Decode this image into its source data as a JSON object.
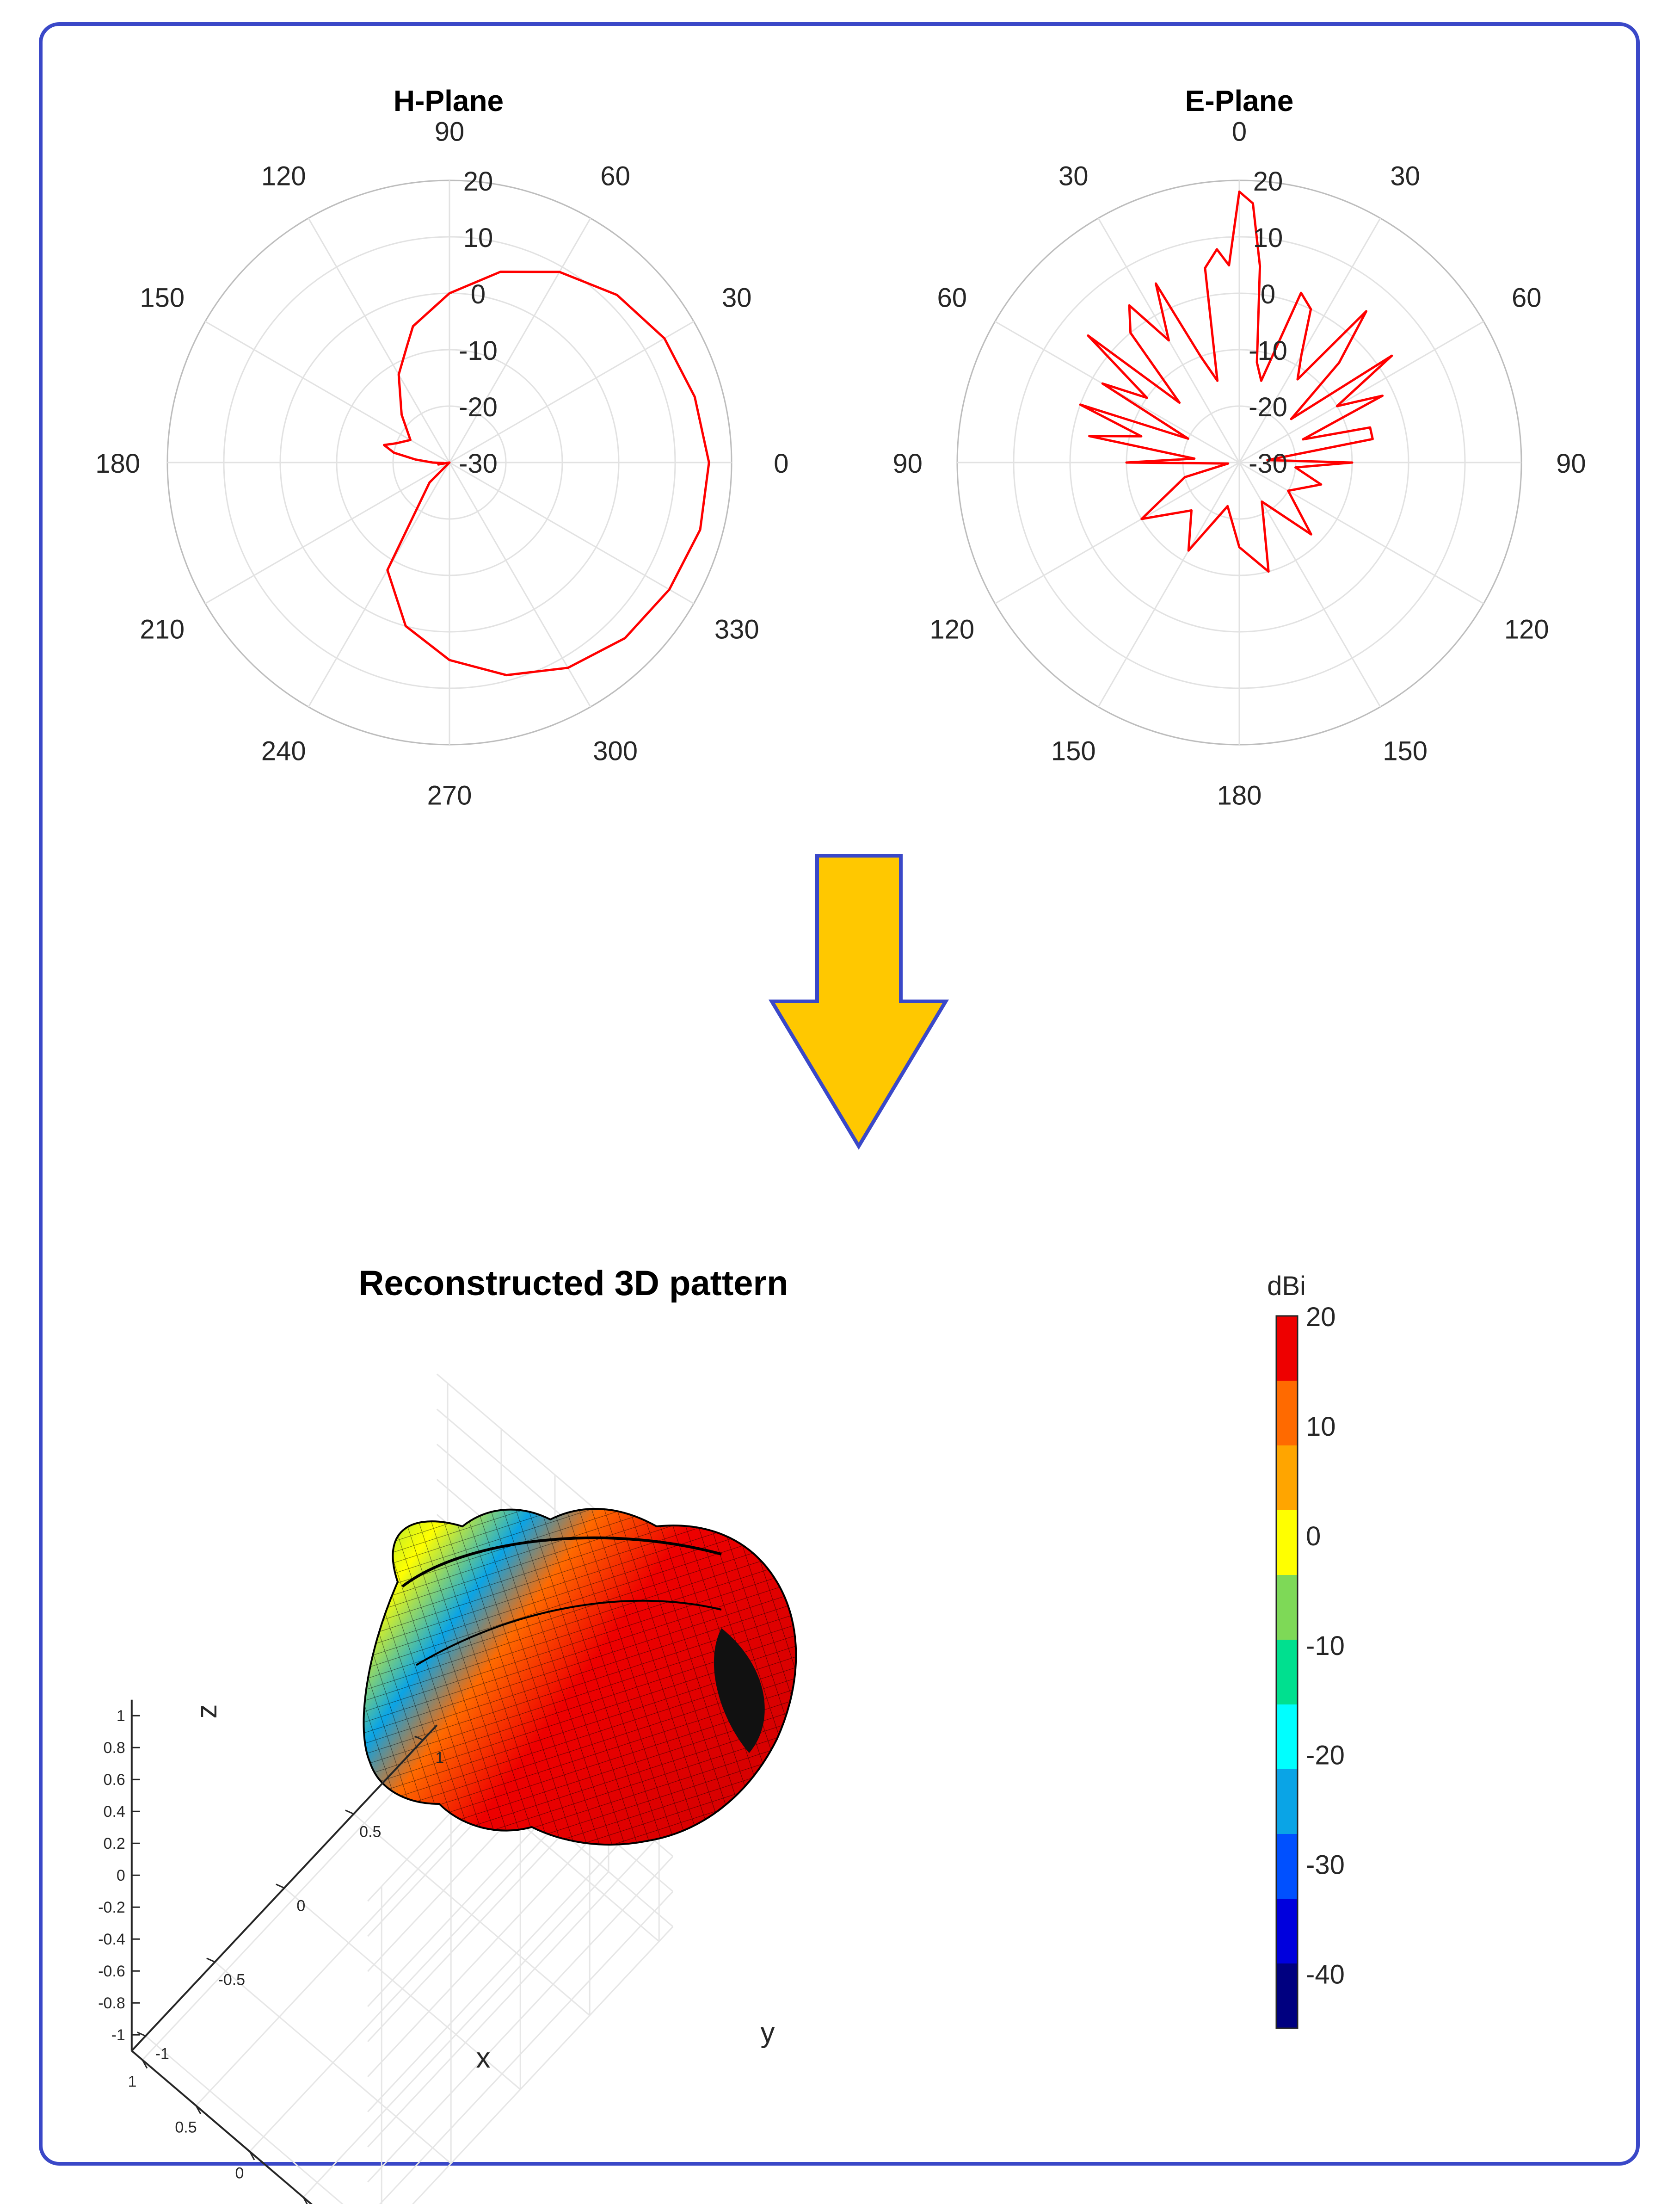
{
  "chart_data": [
    {
      "type": "polar",
      "title": "H-Plane",
      "r_ticks": [
        -30,
        -20,
        -10,
        0,
        10,
        20
      ],
      "r_range": [
        -30,
        20
      ],
      "angle_labels": [
        "0",
        "30",
        "60",
        "90",
        "120",
        "150",
        "180",
        "210",
        "240",
        "270",
        "300",
        "330"
      ],
      "angle_direction": "counterclockwise",
      "zero_position": "right",
      "series": [
        {
          "color": "#ff0000",
          "theta_deg": [
            0,
            15,
            30,
            45,
            60,
            75,
            90,
            105,
            110,
            120,
            135,
            150,
            160,
            165,
            170,
            175,
            180,
            185,
            190,
            200,
            210,
            225,
            240,
            255,
            270,
            285,
            300,
            315,
            330,
            345,
            360
          ],
          "r_db": [
            16,
            15,
            14,
            12,
            9,
            5,
            0,
            -5,
            -8,
            -12,
            -18,
            -22,
            -20,
            -18,
            -20,
            -24,
            -27,
            -29,
            -28,
            -30,
            -30,
            -25,
            -8,
            0,
            5,
            9,
            12,
            14,
            15,
            16,
            16
          ]
        }
      ]
    },
    {
      "type": "polar",
      "title": "E-Plane",
      "r_ticks": [
        -30,
        -20,
        -10,
        0,
        10,
        20
      ],
      "r_range": [
        -30,
        20
      ],
      "angle_labels": [
        "0",
        "30",
        "60",
        "90",
        "120",
        "150",
        "180",
        "150",
        "120",
        "90",
        "60",
        "30"
      ],
      "angle_direction": "clockwise",
      "zero_position": "top",
      "series": [
        {
          "color": "#ff0000",
          "theta_deg": [
            -180,
            -165,
            -150,
            -135,
            -120,
            -105,
            -95,
            -90,
            -85,
            -80,
            -75,
            -70,
            -65,
            -60,
            -55,
            -50,
            -45,
            -40,
            -35,
            -30,
            -25,
            -20,
            -15,
            -10,
            -6,
            -3,
            0,
            3,
            6,
            10,
            15,
            20,
            25,
            30,
            35,
            40,
            45,
            50,
            55,
            60,
            65,
            70,
            75,
            80,
            85,
            90,
            95,
            105,
            120,
            135,
            150,
            165,
            180
          ],
          "r_db": [
            -15,
            -22,
            -12,
            -18,
            -10,
            -20,
            -28,
            -10,
            -22,
            -3,
            -12,
            0,
            -20,
            -2,
            -10,
            5,
            -15,
            0,
            4,
            -5,
            5,
            -10,
            -15,
            5,
            8,
            5,
            18,
            16,
            5,
            -12,
            -15,
            2,
            0,
            -8,
            -12,
            5,
            -5,
            -18,
            3,
            -10,
            -2,
            -18,
            -6,
            -6,
            -25,
            -10,
            -20,
            -15,
            -20,
            -12,
            -22,
            -10,
            -15
          ]
        }
      ]
    },
    {
      "type": "surface3d",
      "title": "Reconstructed 3D pattern",
      "xlabel": "x",
      "ylabel": "y",
      "zlabel": "z",
      "x_ticks": [
        "-0.5",
        "0",
        "0.5",
        "1"
      ],
      "y_ticks": [
        "-1",
        "-0.5",
        "0",
        "0.5",
        "1"
      ],
      "z_ticks": [
        "1",
        "0.8",
        "0.6",
        "0.4",
        "0.2",
        "0",
        "-0.2",
        "-0.4",
        "-0.6",
        "-0.8",
        "-1"
      ],
      "colorbar": {
        "label": "dBi",
        "range": [
          -45,
          20
        ],
        "tick_labels": [
          "20",
          "10",
          "0",
          "-10",
          "-20",
          "-30",
          "-40"
        ],
        "colors": [
          "#ee0000",
          "#ff6a00",
          "#ffa500",
          "#ffff00",
          "#7ed957",
          "#00e08f",
          "#00ffff",
          "#0aa4e6",
          "#0050ff",
          "#0000dd",
          "#000080"
        ]
      }
    }
  ],
  "graphic": {
    "arrow_fill": "#ffc800",
    "arrow_stroke": "#3a48c8",
    "frame_color": "#3a48c8"
  }
}
